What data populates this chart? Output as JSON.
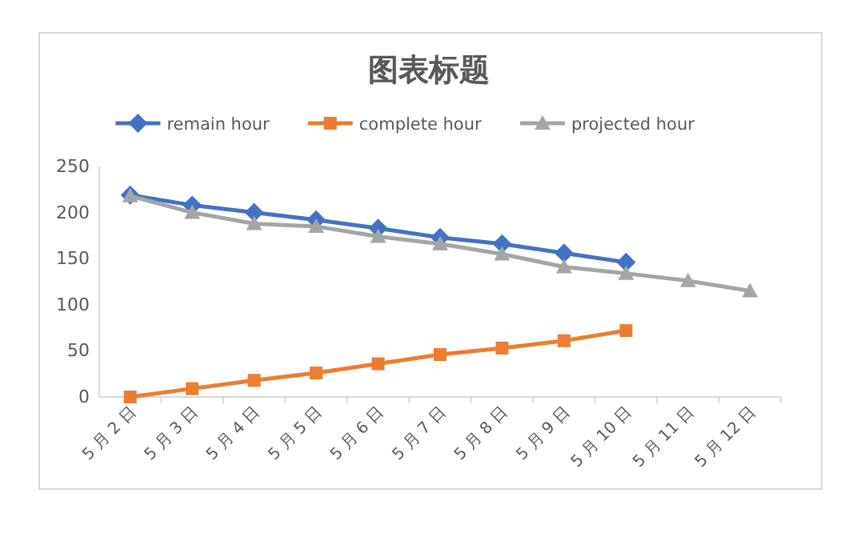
{
  "chart_data": {
    "type": "line",
    "title": "图表标题",
    "categories": [
      "5 月 2 日",
      "5 月 3 日",
      "5 月 4 日",
      "5 月 5 日",
      "5 月 6 日",
      "5 月 7 日",
      "5 月 8 日",
      "5 月 9 日",
      "5 月 10 日",
      "5 月 11 日",
      "5 月 12 日"
    ],
    "series": [
      {
        "name": "remain hour",
        "color": "#4472c4",
        "marker": "diamond",
        "values": [
          219,
          208,
          200,
          192,
          183,
          173,
          166,
          156,
          146,
          null,
          null
        ]
      },
      {
        "name": "complete hour",
        "color": "#ed7d31",
        "marker": "square",
        "values": [
          0,
          9,
          18,
          26,
          36,
          46,
          53,
          61,
          72,
          null,
          null
        ]
      },
      {
        "name": "projected hour",
        "color": "#a5a5a5",
        "marker": "triangle",
        "values": [
          218,
          200,
          188,
          185,
          174,
          166,
          155,
          141,
          134,
          126,
          115
        ]
      }
    ],
    "ylim": [
      0,
      250
    ],
    "yticks": [
      0,
      50,
      100,
      150,
      200,
      250
    ],
    "grid": false,
    "legend": "top",
    "line_style": "solid"
  }
}
